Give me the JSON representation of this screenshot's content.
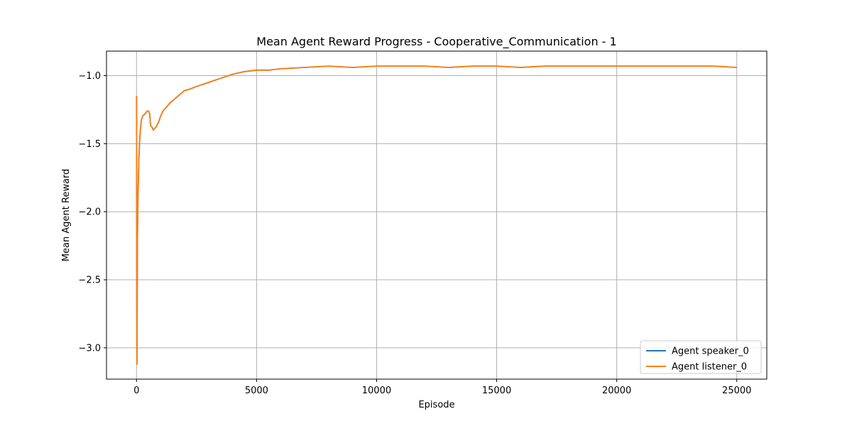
{
  "chart_data": {
    "type": "line",
    "title": "Mean Agent Reward Progress - Cooperative_Communication - 1",
    "xlabel": "Episode",
    "ylabel": "Mean Agent Reward",
    "xlim": [
      -1250,
      26250
    ],
    "ylim": [
      -3.23,
      -0.82
    ],
    "xticks": [
      0,
      5000,
      10000,
      15000,
      20000,
      25000
    ],
    "xtick_labels": [
      "0",
      "5000",
      "10000",
      "15000",
      "20000",
      "25000"
    ],
    "yticks": [
      -3.0,
      -2.5,
      -2.0,
      -1.5,
      -1.0
    ],
    "ytick_labels": [
      "−3.0",
      "−2.5",
      "−2.0",
      "−1.5",
      "−1.0"
    ],
    "grid": true,
    "legend_position": "lower-right",
    "series": [
      {
        "name": "Agent speaker_0",
        "color": "#1f77b4",
        "x": [
          0,
          20,
          40,
          60,
          80,
          100,
          130,
          160,
          200,
          250,
          300,
          350,
          400,
          450,
          500,
          550,
          580,
          600,
          650,
          700,
          750,
          800,
          900,
          1000,
          1100,
          1200,
          1400,
          1600,
          1800,
          2000,
          2200,
          2500,
          3000,
          3500,
          4000,
          4500,
          5000,
          5500,
          6000,
          7000,
          8000,
          9000,
          10000,
          11000,
          12000,
          13000,
          14000,
          15000,
          16000,
          17000,
          18000,
          19000,
          20000,
          21000,
          22000,
          23000,
          24000,
          25000
        ],
        "y": [
          -1.15,
          -3.12,
          -2.2,
          -1.9,
          -1.75,
          -1.6,
          -1.48,
          -1.4,
          -1.33,
          -1.3,
          -1.29,
          -1.28,
          -1.27,
          -1.26,
          -1.26,
          -1.28,
          -1.36,
          -1.37,
          -1.38,
          -1.4,
          -1.39,
          -1.38,
          -1.35,
          -1.3,
          -1.26,
          -1.24,
          -1.2,
          -1.17,
          -1.14,
          -1.11,
          -1.1,
          -1.08,
          -1.05,
          -1.02,
          -0.99,
          -0.97,
          -0.96,
          -0.96,
          -0.95,
          -0.94,
          -0.93,
          -0.94,
          -0.93,
          -0.93,
          -0.93,
          -0.94,
          -0.93,
          -0.93,
          -0.94,
          -0.93,
          -0.93,
          -0.93,
          -0.93,
          -0.93,
          -0.93,
          -0.93,
          -0.93,
          -0.94
        ]
      },
      {
        "name": "Agent listener_0",
        "color": "#ff7f0e",
        "x": [
          0,
          20,
          40,
          60,
          80,
          100,
          130,
          160,
          200,
          250,
          300,
          350,
          400,
          450,
          500,
          550,
          580,
          600,
          650,
          700,
          750,
          800,
          900,
          1000,
          1100,
          1200,
          1400,
          1600,
          1800,
          2000,
          2200,
          2500,
          3000,
          3500,
          4000,
          4500,
          5000,
          5500,
          6000,
          7000,
          8000,
          9000,
          10000,
          11000,
          12000,
          13000,
          14000,
          15000,
          16000,
          17000,
          18000,
          19000,
          20000,
          21000,
          22000,
          23000,
          24000,
          25000
        ],
        "y": [
          -1.15,
          -3.12,
          -2.2,
          -1.9,
          -1.75,
          -1.6,
          -1.48,
          -1.4,
          -1.33,
          -1.3,
          -1.29,
          -1.28,
          -1.27,
          -1.26,
          -1.26,
          -1.28,
          -1.36,
          -1.37,
          -1.38,
          -1.4,
          -1.39,
          -1.38,
          -1.35,
          -1.3,
          -1.26,
          -1.24,
          -1.2,
          -1.17,
          -1.14,
          -1.11,
          -1.1,
          -1.08,
          -1.05,
          -1.02,
          -0.99,
          -0.97,
          -0.96,
          -0.96,
          -0.95,
          -0.94,
          -0.93,
          -0.94,
          -0.93,
          -0.93,
          -0.93,
          -0.94,
          -0.93,
          -0.93,
          -0.94,
          -0.93,
          -0.93,
          -0.93,
          -0.93,
          -0.93,
          -0.93,
          -0.93,
          -0.93,
          -0.94
        ]
      }
    ]
  }
}
